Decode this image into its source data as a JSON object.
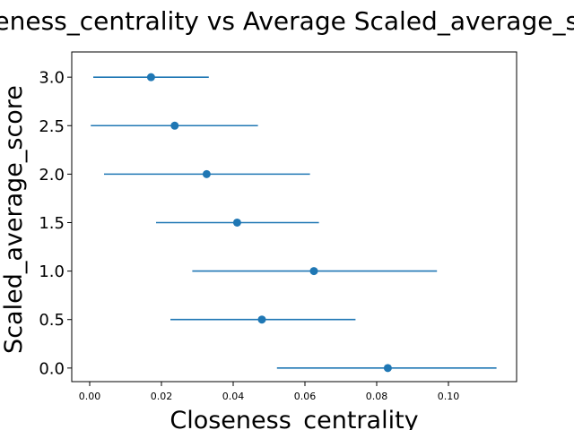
{
  "chart_data": {
    "type": "scatter",
    "title": "Closeness_centrality vs Average Scaled_average_score",
    "xlabel": "Closeness_centrality",
    "ylabel": "Scaled_average_score",
    "xlim": [
      -0.005,
      0.119
    ],
    "ylim": [
      -0.14,
      3.26
    ],
    "xticks": [
      "0.00",
      "0.02",
      "0.04",
      "0.06",
      "0.08",
      "0.10"
    ],
    "yticks": [
      "0.0",
      "0.5",
      "1.0",
      "1.5",
      "2.0",
      "2.5",
      "3.0"
    ],
    "grid": false,
    "color": "#1f77b4",
    "series": [
      {
        "points": [
          {
            "y": 3.0,
            "x": 0.0171,
            "xerr_low": 0.001,
            "xerr_high": 0.0332
          },
          {
            "y": 2.5,
            "x": 0.0237,
            "xerr_low": 0.0003,
            "xerr_high": 0.0469
          },
          {
            "y": 2.0,
            "x": 0.0326,
            "xerr_low": 0.004,
            "xerr_high": 0.0614
          },
          {
            "y": 1.5,
            "x": 0.0411,
            "xerr_low": 0.0185,
            "xerr_high": 0.0639
          },
          {
            "y": 1.0,
            "x": 0.0625,
            "xerr_low": 0.0286,
            "xerr_high": 0.0968
          },
          {
            "y": 0.5,
            "x": 0.048,
            "xerr_low": 0.0225,
            "xerr_high": 0.0741
          },
          {
            "y": 0.0,
            "x": 0.0831,
            "xerr_low": 0.0522,
            "xerr_high": 0.1134
          }
        ]
      }
    ]
  }
}
